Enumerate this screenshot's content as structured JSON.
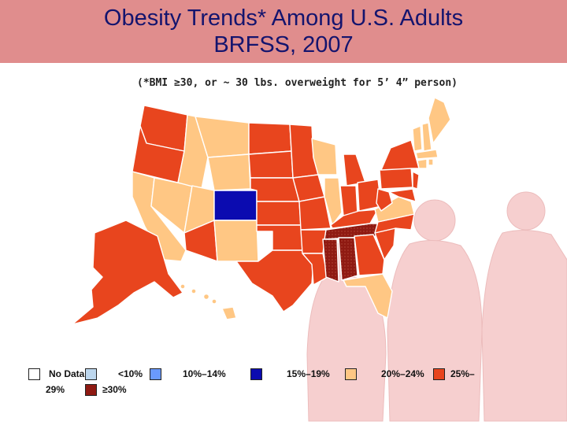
{
  "title": {
    "line1": "Obesity Trends* Among U.S. Adults",
    "line2": "BRFSS, 2007"
  },
  "subtitle": "(*BMI ≥30, or ~ 30 lbs. overweight for 5’ 4” person)",
  "colors": {
    "no_data": "#ffffff",
    "lt10": "#bdd7ee",
    "c10_14": "#6a9aff",
    "c15_19": "#0b0bb0",
    "c20_24": "#ffc784",
    "c25_29": "#e8451e",
    "gte30": "#8f1a12",
    "header": "#e08d8d",
    "silhouette": "#f6cfcf"
  },
  "legend": {
    "no_data": "No Data",
    "lt10": "<10%",
    "c10_14": "10%–14%",
    "c15_19": "15%–19%",
    "c20_24": "20%–24%",
    "c25_29_a": "25%–",
    "c25_29_b": "29%",
    "gte30": "≥30%"
  }
}
